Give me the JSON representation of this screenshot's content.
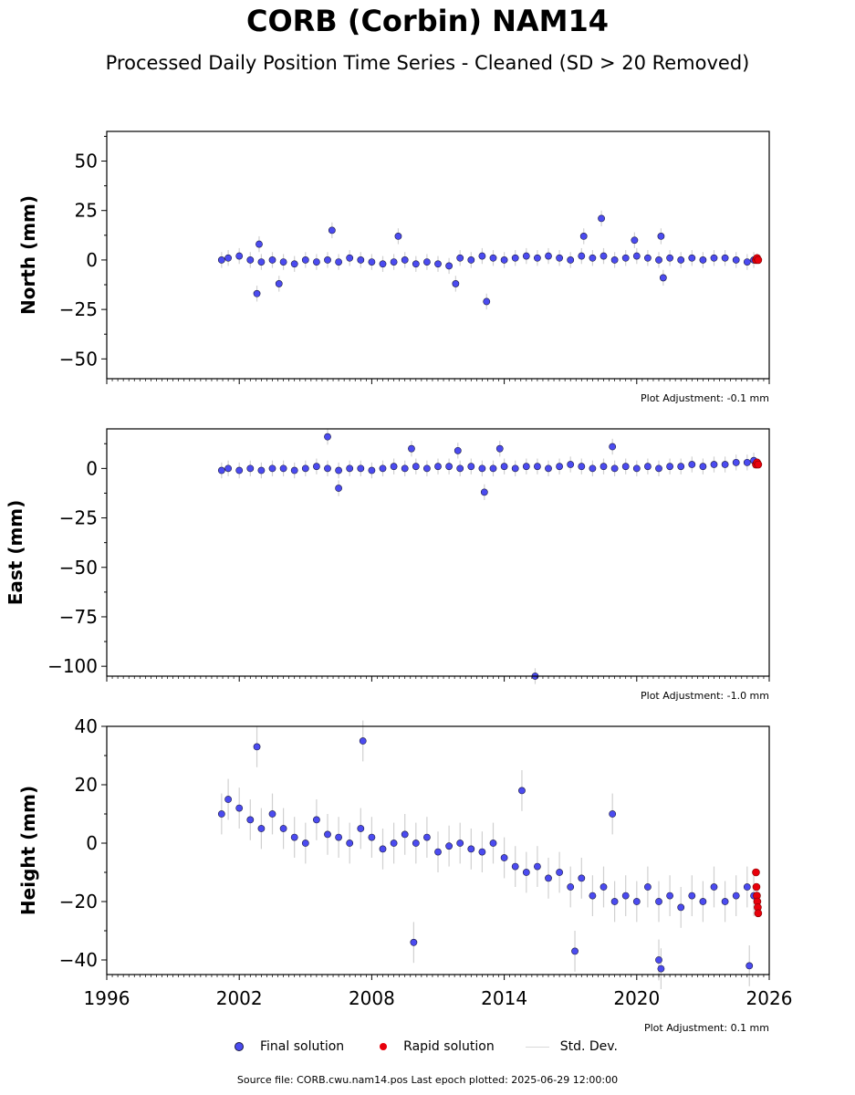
{
  "title": "CORB (Corbin) NAM14",
  "subtitle": "Processed Daily Position Time Series - Cleaned (SD > 20 Removed)",
  "colors": {
    "final": "#4b4bf0",
    "rapid": "#e8000b",
    "stddev": "#d0d0d0",
    "marker_edge": "#1a1a40"
  },
  "legend": {
    "final": "Final solution",
    "rapid": "Rapid solution",
    "stddev": "Std. Dev."
  },
  "footer": "Source file: CORB.cwu.nam14.pos  Last epoch plotted: 2025-06-29 12:00:00",
  "chart_data": [
    {
      "type": "scatter",
      "ylabel": "North (mm)",
      "adjustment": "Plot Adjustment: -0.1 mm",
      "xlim": [
        1996,
        2026
      ],
      "ylim": [
        -60,
        65
      ],
      "yticks": [
        -50,
        -25,
        0,
        25,
        50
      ],
      "ytick_labels": [
        "−50",
        "−25",
        "0",
        "25",
        "50"
      ],
      "xticks": [
        1996,
        2002,
        2008,
        2014,
        2020,
        2026
      ],
      "xtick_labels": [],
      "series": [
        {
          "name": "Final solution",
          "x": [
            2001.2,
            2001.5,
            2002.0,
            2002.5,
            2003.0,
            2003.5,
            2004.0,
            2004.5,
            2005.0,
            2005.5,
            2006.0,
            2006.5,
            2007.0,
            2007.5,
            2008.0,
            2008.5,
            2009.0,
            2009.5,
            2010.0,
            2010.5,
            2011.0,
            2011.5,
            2012.0,
            2012.5,
            2013.0,
            2013.5,
            2014.0,
            2014.5,
            2015.0,
            2015.5,
            2016.0,
            2016.5,
            2017.0,
            2017.5,
            2018.0,
            2018.5,
            2019.0,
            2019.5,
            2020.0,
            2020.5,
            2021.0,
            2021.5,
            2022.0,
            2022.5,
            2023.0,
            2023.5,
            2024.0,
            2024.5,
            2025.0,
            2025.3,
            2002.8,
            2002.9,
            2003.8,
            2006.2,
            2009.2,
            2011.8,
            2013.2,
            2017.6,
            2018.4,
            2019.9,
            2021.1,
            2021.2
          ],
          "y": [
            0,
            1,
            2,
            0,
            -1,
            0,
            -1,
            -2,
            0,
            -1,
            0,
            -1,
            1,
            0,
            -1,
            -2,
            -1,
            0,
            -2,
            -1,
            -2,
            -3,
            1,
            0,
            2,
            1,
            0,
            1,
            2,
            1,
            2,
            1,
            0,
            2,
            1,
            2,
            0,
            1,
            2,
            1,
            0,
            1,
            0,
            1,
            0,
            1,
            1,
            0,
            -1,
            0,
            -17,
            8,
            -12,
            15,
            12,
            -12,
            -21,
            12,
            21,
            10,
            12,
            -9
          ]
        },
        {
          "name": "Rapid solution",
          "x": [
            2025.4,
            2025.45,
            2025.5
          ],
          "y": [
            0,
            1,
            0
          ]
        }
      ]
    },
    {
      "type": "scatter",
      "ylabel": "East (mm)",
      "adjustment": "Plot Adjustment: -1.0 mm",
      "xlim": [
        1996,
        2026
      ],
      "ylim": [
        -105,
        20
      ],
      "yticks": [
        -100,
        -75,
        -50,
        -25,
        0
      ],
      "ytick_labels": [
        "−100",
        "−75",
        "−50",
        "−25",
        "0"
      ],
      "xticks": [
        1996,
        2002,
        2008,
        2014,
        2020,
        2026
      ],
      "xtick_labels": [],
      "series": [
        {
          "name": "Final solution",
          "x": [
            2001.2,
            2001.5,
            2002.0,
            2002.5,
            2003.0,
            2003.5,
            2004.0,
            2004.5,
            2005.0,
            2005.5,
            2006.0,
            2006.5,
            2007.0,
            2007.5,
            2008.0,
            2008.5,
            2009.0,
            2009.5,
            2010.0,
            2010.5,
            2011.0,
            2011.5,
            2012.0,
            2012.5,
            2013.0,
            2013.5,
            2014.0,
            2014.5,
            2015.0,
            2015.5,
            2016.0,
            2016.5,
            2017.0,
            2017.5,
            2018.0,
            2018.5,
            2019.0,
            2019.5,
            2020.0,
            2020.5,
            2021.0,
            2021.5,
            2022.0,
            2022.5,
            2023.0,
            2023.5,
            2024.0,
            2024.5,
            2025.0,
            2025.3,
            2006.0,
            2009.8,
            2011.9,
            2013.1,
            2013.8,
            2015.4,
            2018.9,
            2006.5
          ],
          "y": [
            -1,
            0,
            -1,
            0,
            -1,
            0,
            0,
            -1,
            0,
            1,
            0,
            -1,
            0,
            0,
            -1,
            0,
            1,
            0,
            1,
            0,
            1,
            1,
            0,
            1,
            0,
            0,
            1,
            0,
            1,
            1,
            0,
            1,
            2,
            1,
            0,
            1,
            0,
            1,
            0,
            1,
            0,
            1,
            1,
            2,
            1,
            2,
            2,
            3,
            3,
            4,
            16,
            10,
            9,
            -12,
            10,
            -105,
            11,
            -10
          ]
        },
        {
          "name": "Rapid solution",
          "x": [
            2025.4,
            2025.45,
            2025.5
          ],
          "y": [
            2,
            3,
            2
          ]
        }
      ]
    },
    {
      "type": "scatter",
      "ylabel": "Height (mm)",
      "adjustment": "Plot Adjustment: 0.1 mm",
      "xlim": [
        1996,
        2026
      ],
      "ylim": [
        -45,
        40
      ],
      "yticks": [
        -40,
        -20,
        0,
        20,
        40
      ],
      "ytick_labels": [
        "−40",
        "−20",
        "0",
        "20",
        "40"
      ],
      "xticks": [
        1996,
        2002,
        2008,
        2014,
        2020,
        2026
      ],
      "xtick_labels": [
        "1996",
        "2002",
        "2008",
        "2014",
        "2020",
        "2026"
      ],
      "series": [
        {
          "name": "Final solution",
          "x": [
            2001.2,
            2001.5,
            2002.0,
            2002.5,
            2003.0,
            2003.5,
            2004.0,
            2004.5,
            2005.0,
            2005.5,
            2006.0,
            2006.5,
            2007.0,
            2007.5,
            2008.0,
            2008.5,
            2009.0,
            2009.5,
            2010.0,
            2010.5,
            2011.0,
            2011.5,
            2012.0,
            2012.5,
            2013.0,
            2013.5,
            2014.0,
            2014.5,
            2015.0,
            2015.5,
            2016.0,
            2016.5,
            2017.0,
            2017.5,
            2018.0,
            2018.5,
            2019.0,
            2019.5,
            2020.0,
            2020.5,
            2021.0,
            2021.5,
            2022.0,
            2022.5,
            2023.0,
            2023.5,
            2024.0,
            2024.5,
            2025.0,
            2025.3,
            2002.8,
            2007.6,
            2009.9,
            2014.8,
            2017.2,
            2018.9,
            2021.0,
            2021.1,
            2025.1
          ],
          "y": [
            10,
            15,
            12,
            8,
            5,
            10,
            5,
            2,
            0,
            8,
            3,
            2,
            0,
            5,
            2,
            -2,
            0,
            3,
            0,
            2,
            -3,
            -1,
            0,
            -2,
            -3,
            0,
            -5,
            -8,
            -10,
            -8,
            -12,
            -10,
            -15,
            -12,
            -18,
            -15,
            -20,
            -18,
            -20,
            -15,
            -20,
            -18,
            -22,
            -18,
            -20,
            -15,
            -20,
            -18,
            -15,
            -18,
            33,
            35,
            -34,
            18,
            -37,
            10,
            -40,
            -43,
            -42
          ]
        },
        {
          "name": "Rapid solution",
          "x": [
            2025.4,
            2025.42,
            2025.44,
            2025.46,
            2025.48,
            2025.5
          ],
          "y": [
            -10,
            -15,
            -18,
            -20,
            -22,
            -24
          ]
        }
      ]
    }
  ]
}
